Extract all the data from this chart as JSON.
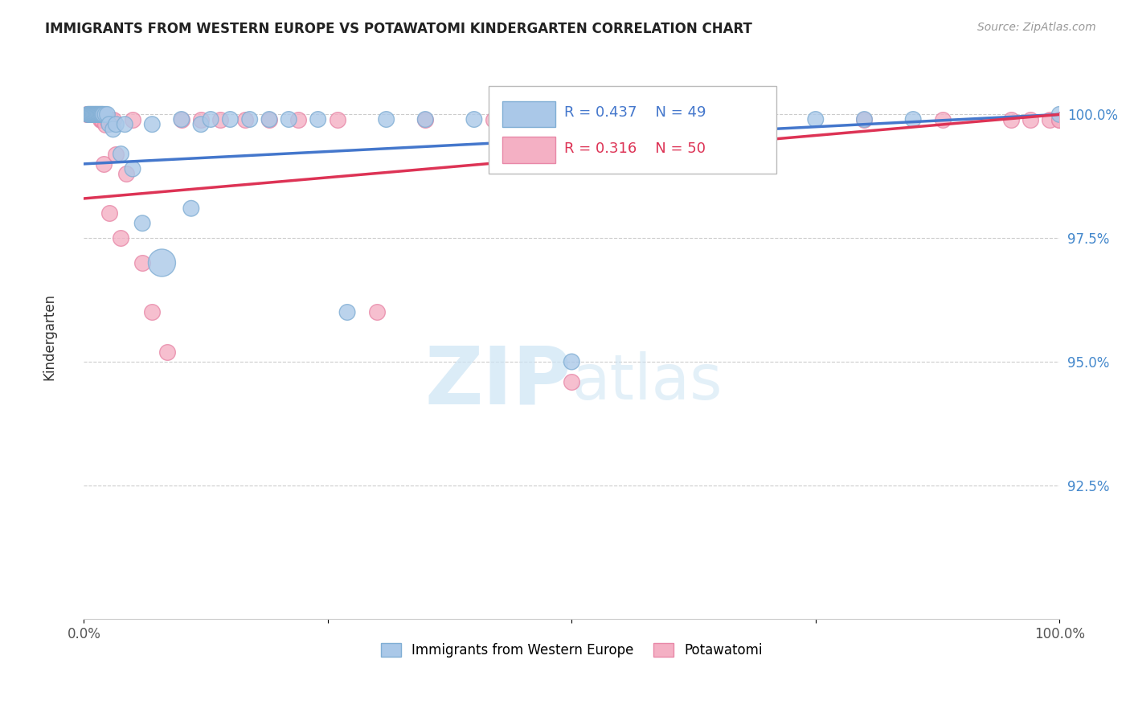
{
  "title": "IMMIGRANTS FROM WESTERN EUROPE VS POTAWATOMI KINDERGARTEN CORRELATION CHART",
  "source_text": "Source: ZipAtlas.com",
  "ylabel": "Kindergarten",
  "x_min": 0.0,
  "x_max": 1.0,
  "y_min": 0.898,
  "y_max": 1.012,
  "yticks": [
    1.0,
    0.975,
    0.95,
    0.925
  ],
  "ytick_labels": [
    "100.0%",
    "97.5%",
    "95.0%",
    "92.5%"
  ],
  "blue_R": 0.437,
  "blue_N": 49,
  "pink_R": 0.316,
  "pink_N": 50,
  "blue_color": "#aac8e8",
  "blue_edge": "#80aed4",
  "pink_color": "#f4b0c4",
  "pink_edge": "#e888a8",
  "blue_line_color": "#4477cc",
  "pink_line_color": "#dd3355",
  "legend_blue_label": "Immigrants from Western Europe",
  "legend_pink_label": "Potawatomi",
  "watermark_color": "#cce4f4",
  "background_color": "#ffffff",
  "blue_x": [
    0.004,
    0.005,
    0.006,
    0.007,
    0.008,
    0.009,
    0.01,
    0.011,
    0.012,
    0.013,
    0.014,
    0.015,
    0.016,
    0.017,
    0.018,
    0.019,
    0.02,
    0.022,
    0.024,
    0.026,
    0.03,
    0.033,
    0.038,
    0.042,
    0.05,
    0.06,
    0.07,
    0.08,
    0.1,
    0.11,
    0.12,
    0.13,
    0.15,
    0.17,
    0.19,
    0.21,
    0.24,
    0.27,
    0.31,
    0.35,
    0.4,
    0.45,
    0.5,
    0.6,
    0.7,
    0.75,
    0.8,
    0.85,
    1.0
  ],
  "blue_y": [
    1.0,
    1.0,
    1.0,
    1.0,
    1.0,
    1.0,
    1.0,
    1.0,
    1.0,
    1.0,
    1.0,
    1.0,
    1.0,
    1.0,
    1.0,
    1.0,
    1.0,
    1.0,
    1.0,
    0.998,
    0.997,
    0.998,
    0.992,
    0.998,
    0.989,
    0.978,
    0.998,
    0.97,
    0.999,
    0.981,
    0.998,
    0.999,
    0.999,
    0.999,
    0.999,
    0.999,
    0.999,
    0.96,
    0.999,
    0.999,
    0.999,
    0.999,
    0.95,
    0.999,
    0.999,
    0.999,
    0.999,
    0.999,
    1.0
  ],
  "blue_sizes": [
    200,
    200,
    200,
    200,
    200,
    200,
    200,
    200,
    200,
    200,
    200,
    200,
    200,
    200,
    200,
    200,
    200,
    200,
    200,
    200,
    200,
    200,
    200,
    200,
    200,
    200,
    200,
    600,
    200,
    200,
    200,
    200,
    200,
    200,
    200,
    200,
    200,
    200,
    200,
    200,
    200,
    200,
    200,
    200,
    200,
    200,
    200,
    200,
    200
  ],
  "pink_x": [
    0.003,
    0.004,
    0.005,
    0.006,
    0.007,
    0.008,
    0.009,
    0.01,
    0.011,
    0.012,
    0.013,
    0.014,
    0.015,
    0.016,
    0.017,
    0.018,
    0.019,
    0.02,
    0.022,
    0.024,
    0.026,
    0.028,
    0.03,
    0.033,
    0.038,
    0.043,
    0.05,
    0.06,
    0.07,
    0.085,
    0.1,
    0.12,
    0.14,
    0.165,
    0.19,
    0.22,
    0.26,
    0.3,
    0.35,
    0.42,
    0.5,
    0.6,
    0.7,
    0.8,
    0.88,
    0.95,
    0.97,
    0.99,
    1.0,
    1.0
  ],
  "pink_y": [
    1.0,
    1.0,
    1.0,
    1.0,
    1.0,
    1.0,
    1.0,
    1.0,
    1.0,
    1.0,
    1.0,
    1.0,
    1.0,
    1.0,
    0.999,
    0.999,
    0.999,
    0.99,
    0.998,
    0.999,
    0.98,
    0.999,
    0.999,
    0.992,
    0.975,
    0.988,
    0.999,
    0.97,
    0.96,
    0.952,
    0.999,
    0.999,
    0.999,
    0.999,
    0.999,
    0.999,
    0.999,
    0.96,
    0.999,
    0.999,
    0.946,
    0.999,
    0.999,
    0.999,
    0.999,
    0.999,
    0.999,
    0.999,
    0.999,
    0.999
  ]
}
